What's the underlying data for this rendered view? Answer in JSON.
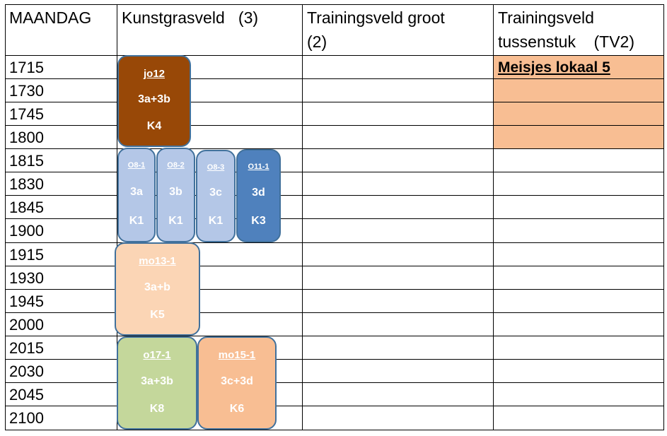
{
  "header": {
    "day": "MAANDAG",
    "col1": "Kunstgrasveld   (3)",
    "col2_line1": "Trainingsveld groot",
    "col2_line2": "(2)",
    "col3_line1": "Trainingsveld",
    "col3_line2": "tussenstuk    (TV2)"
  },
  "times": [
    "1715",
    "1730",
    "1745",
    "1800",
    "1815",
    "1830",
    "1845",
    "1900",
    "1915",
    "1930",
    "1945",
    "2000",
    "2015",
    "2030",
    "2045",
    "2100"
  ],
  "tv2_label": "Meisjes lokaal 5",
  "blocks": {
    "jo12": {
      "team": "jo12",
      "group": "3a+3b",
      "locker": "K4",
      "color": "#984807"
    },
    "o8_1": {
      "team": "O8-1",
      "group": "3a",
      "locker": "K1",
      "color": "#b4c7e7"
    },
    "o8_2": {
      "team": "O8-2",
      "group": "3b",
      "locker": "K1",
      "color": "#b4c7e7"
    },
    "o8_3": {
      "team": "O8-3",
      "group": "3c",
      "locker": "K1",
      "color": "#b4c7e7"
    },
    "o11_1": {
      "team": "O11-1",
      "group": "3d",
      "locker": "K3",
      "color": "#4f81bd"
    },
    "mo13_1": {
      "team": "mo13-1",
      "group": "3a+b",
      "locker": "K5",
      "color": "#fbd5b5"
    },
    "o17_1": {
      "team": "o17-1",
      "group": "3a+3b",
      "locker": "K8",
      "color": "#c4d79b"
    },
    "mo15_1": {
      "team": "mo15-1",
      "group": "3c+3d",
      "locker": "K6",
      "color": "#f8be93"
    }
  }
}
